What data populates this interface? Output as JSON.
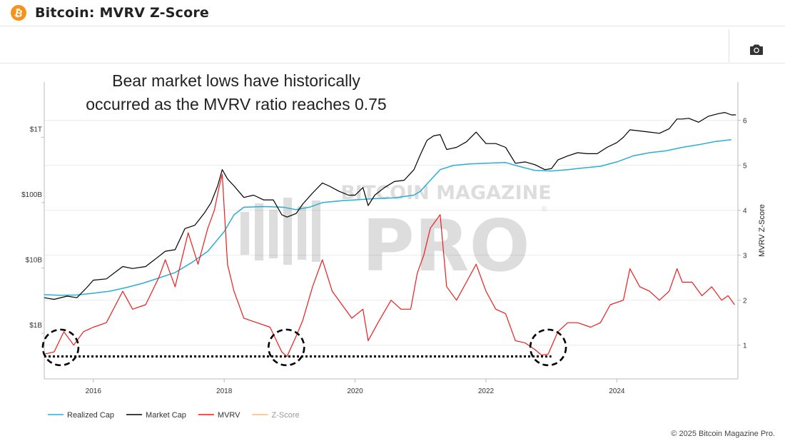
{
  "header": {
    "logo_glyph": "₿",
    "title": "Bitcoin: MVRV Z-Score"
  },
  "toolbar": {
    "camera_icon": "camera-icon"
  },
  "annotation": {
    "line1": "Bear market lows have historically",
    "line2": "occurred as the MVRV ratio reaches 0.75"
  },
  "watermark": {
    "line1": "BITCOIN MAGAZINE",
    "line2": "PRO",
    "mark": "®"
  },
  "footer": {
    "copyright": "© 2025 Bitcoin Magazine Pro."
  },
  "colors": {
    "realized_cap": "#29aed6",
    "market_cap": "#000000",
    "mvrv": "#ee1c1c",
    "z_score": "#f5b880"
  },
  "chart_data": {
    "type": "line",
    "title": "Bitcoin: MVRV Z-Score",
    "ylabel_right": "MVRV Z-Score",
    "x_ticks": [
      "2016",
      "2018",
      "2020",
      "2022",
      "2024"
    ],
    "x_range": [
      2015.25,
      2025.85
    ],
    "left_axis": {
      "scale": "log",
      "range": [
        200000000,
        7000000000000
      ],
      "ticks": [
        {
          "value": 1000000000,
          "label": "$1B"
        },
        {
          "value": 10000000000,
          "label": "$10B"
        },
        {
          "value": 100000000000,
          "label": "$100B"
        },
        {
          "value": 1000000000000,
          "label": "$1T"
        }
      ]
    },
    "right_axis": {
      "scale": "linear",
      "range": [
        0.25,
        6.85
      ],
      "ticks": [
        1,
        2,
        3,
        4,
        5,
        6
      ]
    },
    "grid": true,
    "legend_position": "bottom-left",
    "reference_line": {
      "value": 0.75,
      "axis": "right",
      "from": 2015.25,
      "to": 2023.0,
      "style": "dotted"
    },
    "highlight_circles": [
      {
        "x": 2015.5,
        "y": 0.95
      },
      {
        "x": 2018.95,
        "y": 0.95
      },
      {
        "x": 2022.95,
        "y": 0.95
      }
    ],
    "series": [
      {
        "name": "Realized Cap",
        "axis": "left",
        "x": [
          2015.25,
          2015.5,
          2015.75,
          2016.0,
          2016.25,
          2016.5,
          2016.75,
          2017.0,
          2017.25,
          2017.5,
          2017.75,
          2018.0,
          2018.15,
          2018.3,
          2018.6,
          2018.9,
          2019.1,
          2019.3,
          2019.5,
          2019.8,
          2020.0,
          2020.3,
          2020.6,
          2020.9,
          2021.0,
          2021.15,
          2021.3,
          2021.5,
          2021.75,
          2022.0,
          2022.3,
          2022.5,
          2022.75,
          2023.0,
          2023.25,
          2023.5,
          2023.75,
          2024.0,
          2024.25,
          2024.5,
          2024.75,
          2025.0,
          2025.25,
          2025.5,
          2025.75
        ],
        "values": [
          3900000000,
          3800000000,
          3850000000,
          4100000000,
          4400000000,
          5000000000,
          5800000000,
          7000000000,
          8500000000,
          12000000000,
          18000000000,
          36000000000,
          65000000000,
          85000000000,
          87000000000,
          85000000000,
          78000000000,
          85000000000,
          100000000000,
          107000000000,
          110000000000,
          115000000000,
          118000000000,
          130000000000,
          150000000000,
          220000000000,
          320000000000,
          370000000000,
          390000000000,
          400000000000,
          410000000000,
          360000000000,
          310000000000,
          305000000000,
          320000000000,
          340000000000,
          360000000000,
          420000000000,
          520000000000,
          580000000000,
          620000000000,
          700000000000,
          770000000000,
          860000000000,
          920000000000
        ]
      },
      {
        "name": "Market Cap",
        "axis": "left",
        "x": [
          2015.25,
          2015.4,
          2015.6,
          2015.75,
          2015.9,
          2016.0,
          2016.2,
          2016.45,
          2016.6,
          2016.8,
          2017.0,
          2017.1,
          2017.25,
          2017.4,
          2017.55,
          2017.7,
          2017.8,
          2017.9,
          2017.97,
          2018.05,
          2018.15,
          2018.3,
          2018.45,
          2018.6,
          2018.75,
          2018.88,
          2018.96,
          2019.1,
          2019.2,
          2019.35,
          2019.5,
          2019.6,
          2019.75,
          2019.9,
          2020.0,
          2020.12,
          2020.2,
          2020.3,
          2020.45,
          2020.6,
          2020.75,
          2020.9,
          2021.0,
          2021.1,
          2021.2,
          2021.3,
          2021.4,
          2021.55,
          2021.7,
          2021.85,
          2022.0,
          2022.15,
          2022.3,
          2022.45,
          2022.6,
          2022.75,
          2022.9,
          2023.0,
          2023.1,
          2023.25,
          2023.4,
          2023.55,
          2023.7,
          2023.85,
          2024.0,
          2024.1,
          2024.2,
          2024.35,
          2024.5,
          2024.65,
          2024.8,
          2024.92,
          2025.0,
          2025.1,
          2025.25,
          2025.4,
          2025.55,
          2025.65,
          2025.75,
          2025.82
        ],
        "values": [
          3500000000,
          3300000000,
          3700000000,
          3500000000,
          5000000000,
          6500000000,
          6800000000,
          10500000000,
          9800000000,
          10500000000,
          15000000000,
          18000000000,
          19000000000,
          40000000000,
          45000000000,
          70000000000,
          100000000000,
          180000000000,
          320000000000,
          230000000000,
          180000000000,
          120000000000,
          130000000000,
          110000000000,
          110000000000,
          65000000000,
          60000000000,
          68000000000,
          95000000000,
          140000000000,
          200000000000,
          180000000000,
          150000000000,
          130000000000,
          130000000000,
          170000000000,
          90000000000,
          130000000000,
          170000000000,
          210000000000,
          220000000000,
          320000000000,
          550000000000,
          900000000000,
          1050000000000,
          1100000000000,
          650000000000,
          700000000000,
          850000000000,
          1200000000000,
          800000000000,
          800000000000,
          700000000000,
          400000000000,
          420000000000,
          380000000000,
          320000000000,
          330000000000,
          450000000000,
          520000000000,
          580000000000,
          560000000000,
          560000000000,
          700000000000,
          830000000000,
          1000000000000,
          1300000000000,
          1250000000000,
          1200000000000,
          1150000000000,
          1350000000000,
          1900000000000,
          1900000000000,
          1950000000000,
          1700000000000,
          2100000000000,
          2300000000000,
          2400000000000,
          2200000000000,
          2200000000000
        ]
      },
      {
        "name": "MVRV",
        "axis": "right",
        "x": [
          2015.25,
          2015.4,
          2015.55,
          2015.7,
          2015.85,
          2016.0,
          2016.2,
          2016.45,
          2016.6,
          2016.8,
          2017.0,
          2017.1,
          2017.25,
          2017.45,
          2017.6,
          2017.75,
          2017.85,
          2017.92,
          2017.97,
          2018.05,
          2018.15,
          2018.3,
          2018.5,
          2018.7,
          2018.88,
          2018.96,
          2019.1,
          2019.2,
          2019.35,
          2019.5,
          2019.65,
          2019.8,
          2019.95,
          2020.12,
          2020.2,
          2020.35,
          2020.55,
          2020.7,
          2020.85,
          2020.95,
          2021.05,
          2021.15,
          2021.3,
          2021.4,
          2021.55,
          2021.7,
          2021.85,
          2022.0,
          2022.15,
          2022.3,
          2022.45,
          2022.6,
          2022.75,
          2022.85,
          2022.95,
          2023.1,
          2023.25,
          2023.4,
          2023.6,
          2023.75,
          2023.9,
          2024.1,
          2024.2,
          2024.35,
          2024.5,
          2024.65,
          2024.8,
          2024.92,
          2025.0,
          2025.15,
          2025.3,
          2025.45,
          2025.6,
          2025.7,
          2025.8
        ],
        "values": [
          0.8,
          0.85,
          1.3,
          1.0,
          1.3,
          1.4,
          1.5,
          2.2,
          1.8,
          1.9,
          2.5,
          2.9,
          2.3,
          3.5,
          2.8,
          3.6,
          4.0,
          4.5,
          4.8,
          2.8,
          2.2,
          1.6,
          1.5,
          1.4,
          0.85,
          0.75,
          1.2,
          1.55,
          2.3,
          2.9,
          2.2,
          1.9,
          1.6,
          1.8,
          1.1,
          1.5,
          2.0,
          1.8,
          1.8,
          2.6,
          3.0,
          3.6,
          3.9,
          2.3,
          2.0,
          2.4,
          2.8,
          2.2,
          1.8,
          1.7,
          1.1,
          1.05,
          0.9,
          0.78,
          0.8,
          1.3,
          1.5,
          1.5,
          1.4,
          1.5,
          1.9,
          2.0,
          2.7,
          2.3,
          2.2,
          2.0,
          2.2,
          2.7,
          2.4,
          2.4,
          2.1,
          2.3,
          2.0,
          2.1,
          1.9
        ]
      },
      {
        "name": "Z-Score",
        "axis": "right",
        "x": [],
        "values": []
      }
    ]
  }
}
